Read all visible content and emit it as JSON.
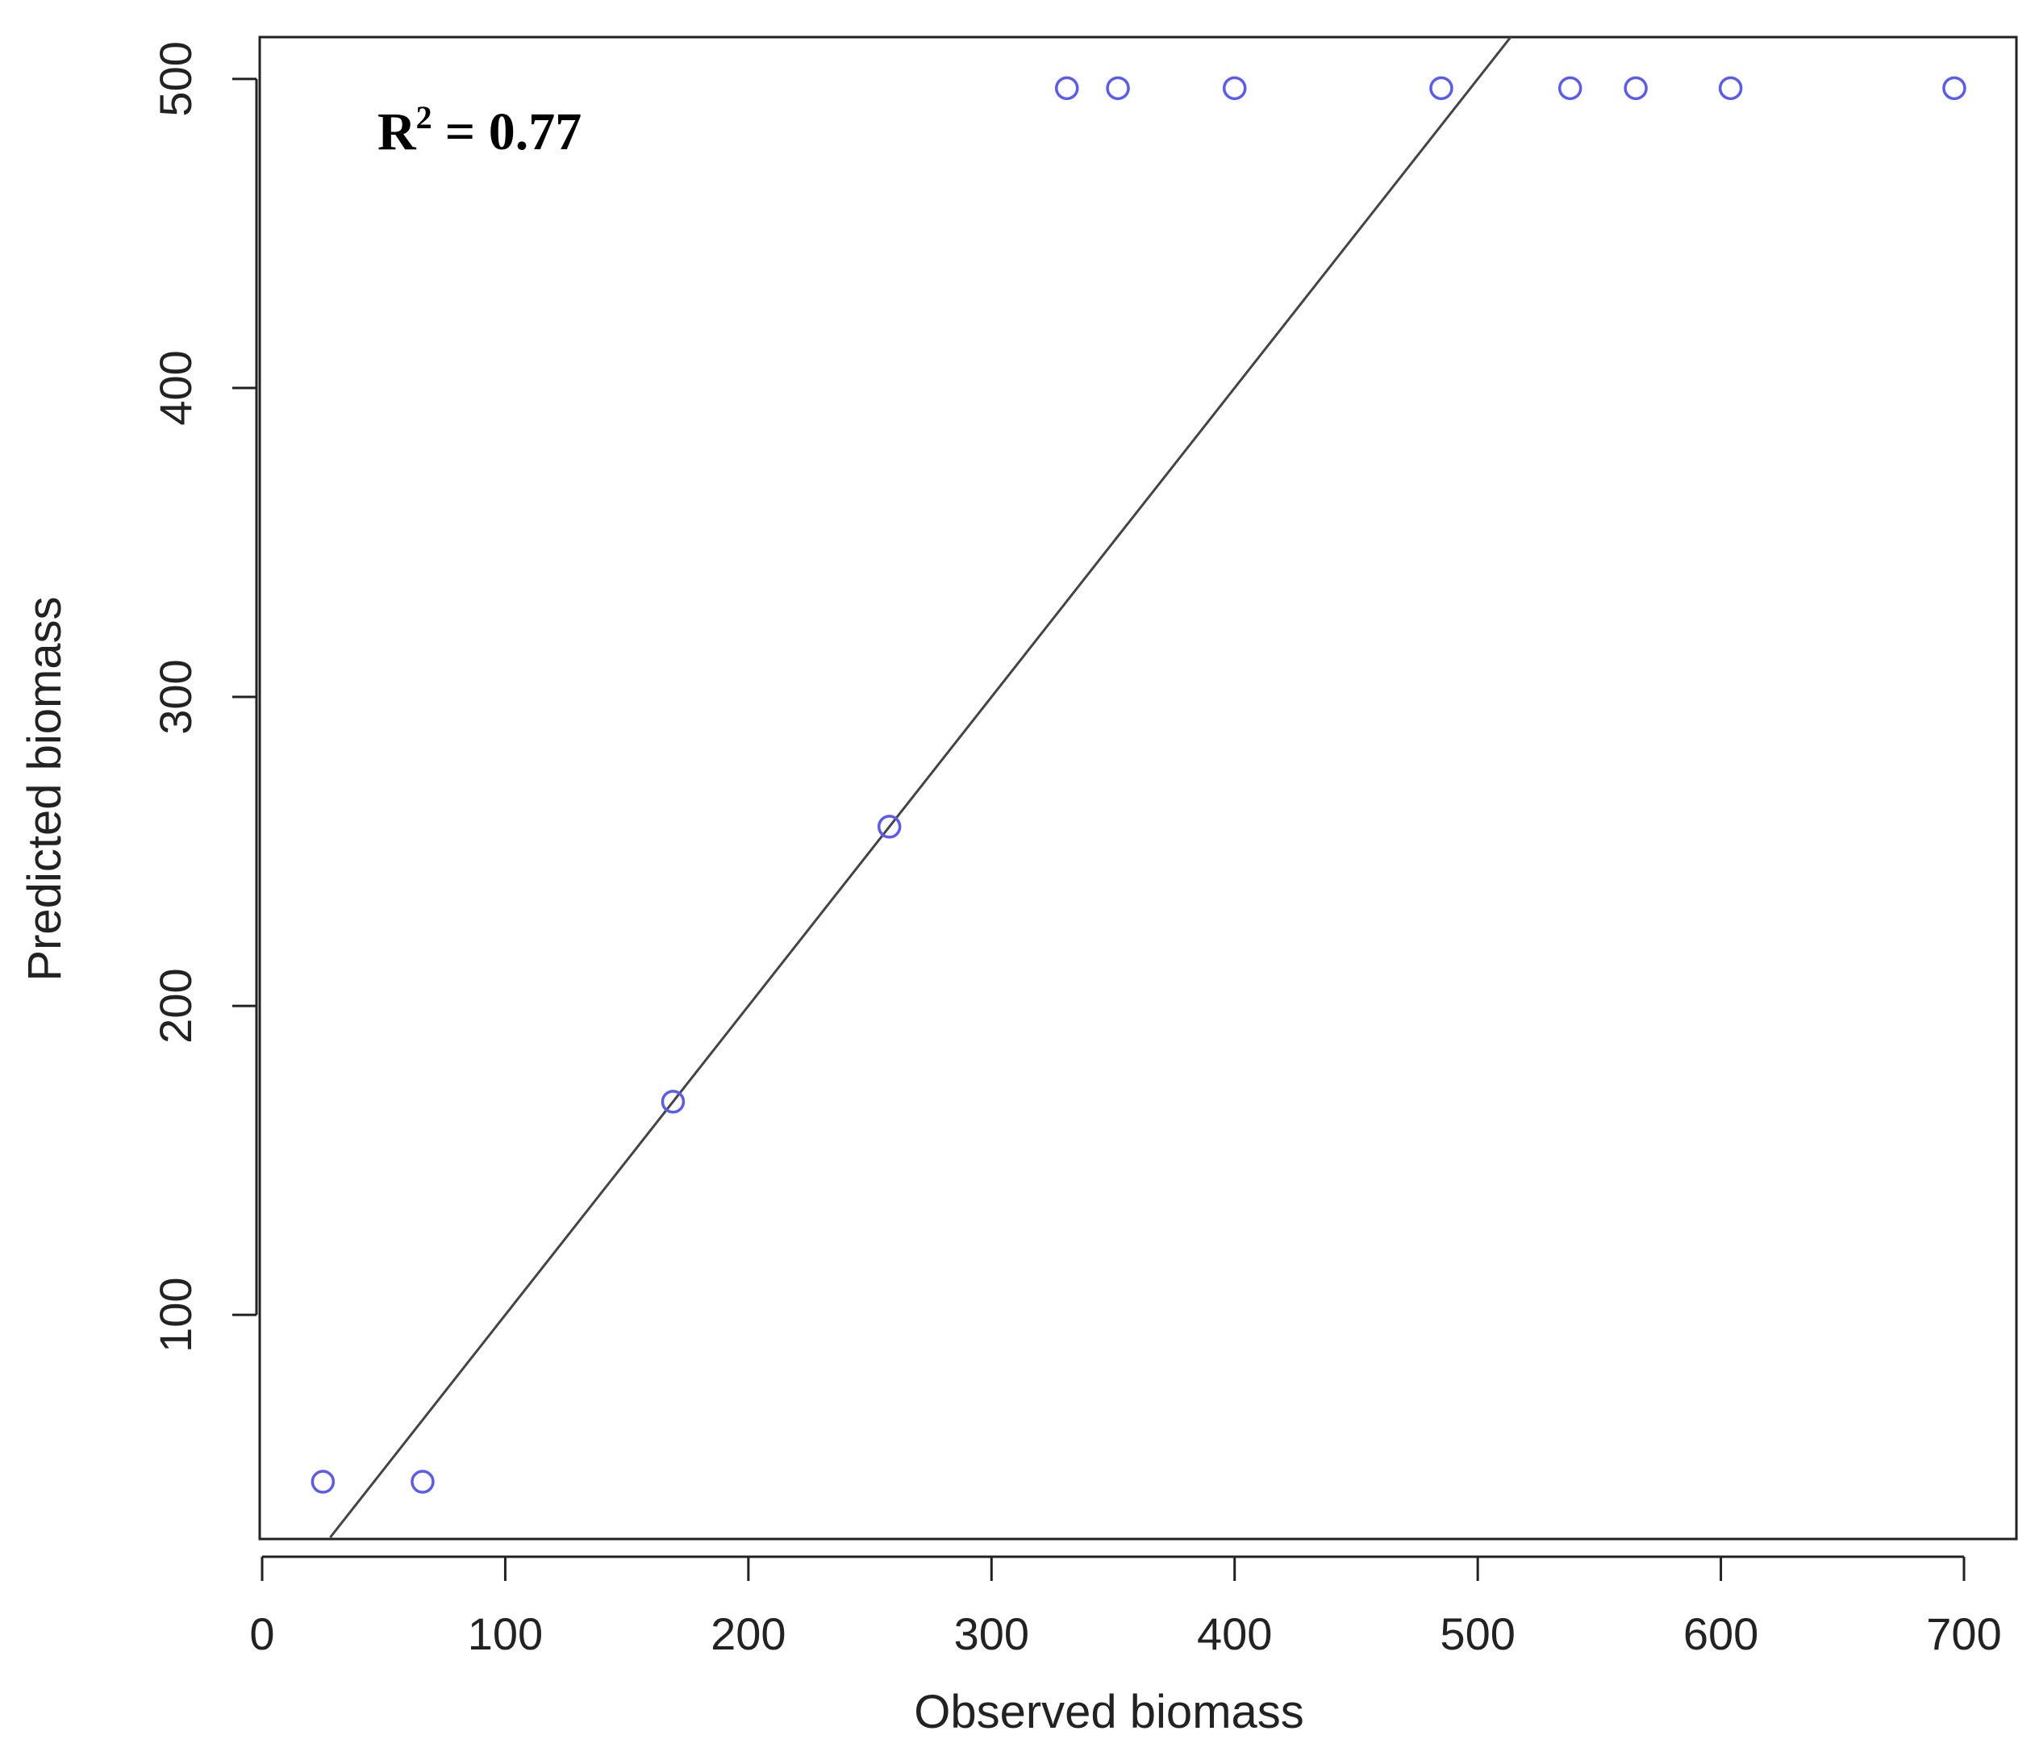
{
  "chart_data": {
    "type": "scatter",
    "xlabel": "Observed biomass",
    "ylabel": "Predicted biomass",
    "xlim": [
      0,
      720
    ],
    "ylim": [
      28,
      515
    ],
    "x_ticks": [
      0,
      100,
      200,
      300,
      400,
      500,
      600,
      700
    ],
    "y_ticks": [
      100,
      200,
      300,
      400,
      500
    ],
    "grid": false,
    "annotation": {
      "r_label": "R",
      "r_sup": "2",
      "r_value": "= 0.77"
    },
    "series": [
      {
        "marker": "open-circle",
        "color": "#5b5bf0",
        "points": [
          {
            "x": 25,
            "y": 46
          },
          {
            "x": 66,
            "y": 46
          },
          {
            "x": 169,
            "y": 169
          },
          {
            "x": 258,
            "y": 258
          },
          {
            "x": 331,
            "y": 497
          },
          {
            "x": 352,
            "y": 497
          },
          {
            "x": 400,
            "y": 497
          },
          {
            "x": 485,
            "y": 497
          },
          {
            "x": 538,
            "y": 497
          },
          {
            "x": 565,
            "y": 497
          },
          {
            "x": 604,
            "y": 497
          },
          {
            "x": 696,
            "y": 497
          }
        ]
      }
    ],
    "lines": [
      {
        "kind": "1:1",
        "color": "#444444",
        "from": [
          28,
          28
        ],
        "to": [
          515,
          515
        ]
      }
    ]
  }
}
